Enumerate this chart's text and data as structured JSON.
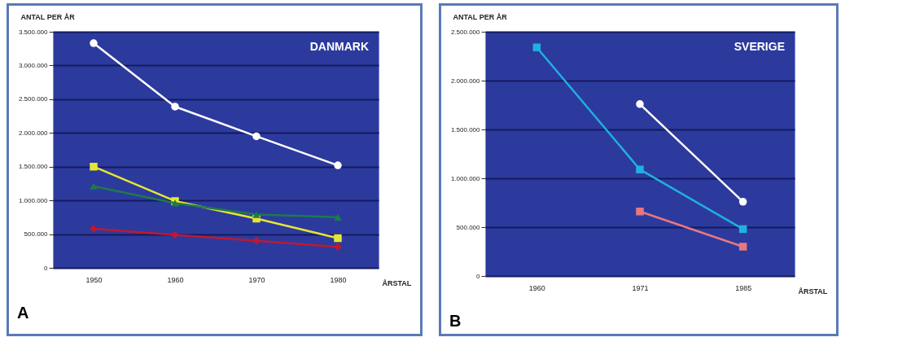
{
  "chart_data": [
    {
      "type": "line",
      "title": "DANMARK",
      "ylabel": "ANTAL PER ÅR",
      "xlabel": "ÅRSTAL",
      "annotations": [
        "A"
      ],
      "categories": [
        "1950",
        "1960",
        "1970",
        "1980"
      ],
      "ylim": [
        0,
        3500000
      ],
      "yticks": [
        {
          "value": 0,
          "label": "0"
        },
        {
          "value": 500000,
          "label": "500.000"
        },
        {
          "value": 1000000,
          "label": "1.000.000"
        },
        {
          "value": 1500000,
          "label": "1.500.000"
        },
        {
          "value": 2000000,
          "label": "2.000.000"
        },
        {
          "value": 2500000,
          "label": "2.500.000"
        },
        {
          "value": 3000000,
          "label": "3.000.000"
        },
        {
          "value": 3500000,
          "label": "3.500.000"
        }
      ],
      "grid": "y",
      "series": [
        {
          "color": "#e6e632",
          "marker": "square",
          "values": [
            1500000,
            990000,
            730000,
            440000
          ]
        },
        {
          "color": "#1f7a4a",
          "marker": "triangle",
          "values": [
            1210000,
            960000,
            790000,
            750000
          ]
        },
        {
          "color": "#c01830",
          "marker": "diamond",
          "values": [
            580000,
            490000,
            400000,
            310000
          ]
        },
        {
          "color": "#ffffff",
          "marker": "circle",
          "values": [
            3330000,
            2390000,
            1950000,
            1520000
          ]
        }
      ]
    },
    {
      "type": "line",
      "title": "SVERIGE",
      "ylabel": "ANTAL PER ÅR",
      "xlabel": "ÅRSTAL",
      "annotations": [
        "B"
      ],
      "categories": [
        "1960",
        "1971",
        "1985"
      ],
      "ylim": [
        0,
        2500000
      ],
      "yticks": [
        {
          "value": 0,
          "label": "0"
        },
        {
          "value": 500000,
          "label": "500.000"
        },
        {
          "value": 1000000,
          "label": "1.000.000"
        },
        {
          "value": 1500000,
          "label": "1.500.000"
        },
        {
          "value": 2000000,
          "label": "2.000.000"
        },
        {
          "value": 2500000,
          "label": "2.500.000"
        }
      ],
      "grid": "y",
      "series": [
        {
          "color": "#20b0e0",
          "marker": "square",
          "values": [
            2340000,
            1090000,
            480000
          ]
        },
        {
          "color": "#e87880",
          "marker": "square",
          "values": [
            null,
            660000,
            300000
          ]
        },
        {
          "color": "#ffffff",
          "marker": "circle",
          "values": [
            null,
            1760000,
            760000
          ]
        }
      ]
    }
  ]
}
